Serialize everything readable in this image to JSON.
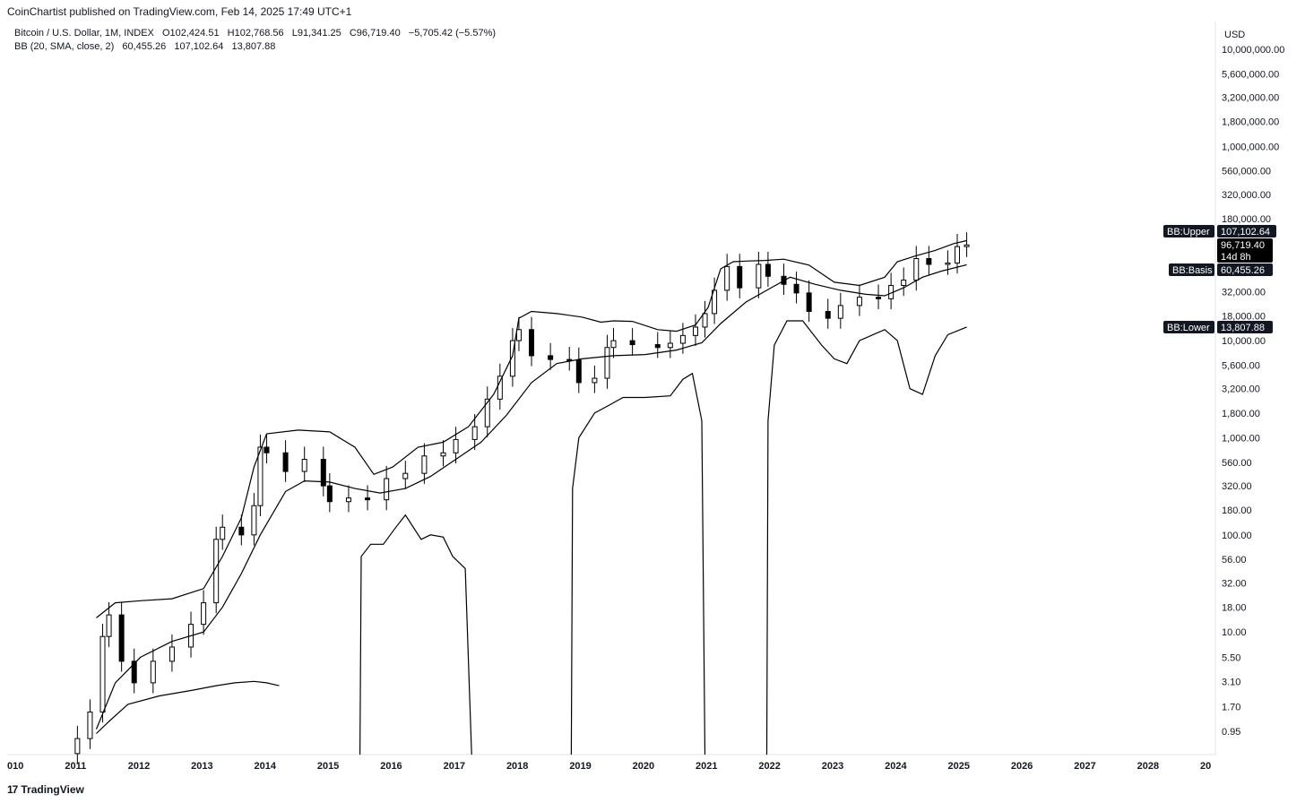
{
  "header": {
    "text": "CoinChartist published on TradingView.com, Feb 14, 2025 17:49 UTC+1"
  },
  "legend": {
    "symbol": "Bitcoin / U.S. Dollar, 1M, INDEX",
    "open": "O102,424.51",
    "high": "H102,768.56",
    "low": "L91,341.25",
    "close": "C96,719.40",
    "change": "−5,705.42 (−5.57%)",
    "indicator": "BB (20, SMA, close, 2)",
    "basis_value": "60,455.26",
    "upper_value": "107,102.64",
    "lower_value": "13,807.88"
  },
  "footer": {
    "logo_glyph": "17",
    "brand": "TradingView"
  },
  "price_tags": {
    "upper_label": "BB:Upper",
    "upper_value": "107,102.64",
    "price_value": "96,719.40",
    "countdown": "14d 8h",
    "basis_label": "BB:Basis",
    "basis_value": "60,455.26",
    "lower_label": "BB:Lower",
    "lower_value": "13,807.88"
  },
  "chart_data": {
    "type": "line",
    "scale": "log",
    "currency": "USD",
    "xlim": [
      2010,
      2029
    ],
    "ylim": [
      0.5,
      14000000
    ],
    "x_ticks": [
      "010",
      "2011",
      "2012",
      "2013",
      "2014",
      "2015",
      "2016",
      "2017",
      "2018",
      "2019",
      "2020",
      "2021",
      "2022",
      "2023",
      "2024",
      "2025",
      "2026",
      "2027",
      "2028",
      "20"
    ],
    "y_ticks": [
      {
        "value": 10000000,
        "label": "10,000,000.00"
      },
      {
        "value": 5600000,
        "label": "5,600,000.00"
      },
      {
        "value": 3200000,
        "label": "3,200,000.00"
      },
      {
        "value": 1800000,
        "label": "1,800,000.00"
      },
      {
        "value": 1000000,
        "label": "1,000,000.00"
      },
      {
        "value": 560000,
        "label": "560,000.00"
      },
      {
        "value": 320000,
        "label": "320,000.00"
      },
      {
        "value": 180000,
        "label": "180,000.00"
      },
      {
        "value": 32000,
        "label": "32,000.00"
      },
      {
        "value": 18000,
        "label": "18,000.00"
      },
      {
        "value": 10000,
        "label": "10,000.00"
      },
      {
        "value": 5600,
        "label": "5,600.00"
      },
      {
        "value": 3200,
        "label": "3,200.00"
      },
      {
        "value": 1800,
        "label": "1,800.00"
      },
      {
        "value": 1000,
        "label": "1,000.00"
      },
      {
        "value": 560,
        "label": "560.00"
      },
      {
        "value": 320,
        "label": "320.00"
      },
      {
        "value": 180,
        "label": "180.00"
      },
      {
        "value": 100,
        "label": "100.00"
      },
      {
        "value": 56,
        "label": "56.00"
      },
      {
        "value": 32,
        "label": "32.00"
      },
      {
        "value": 18,
        "label": "18.00"
      },
      {
        "value": 10,
        "label": "10.00"
      },
      {
        "value": 5.5,
        "label": "5.50"
      },
      {
        "value": 3.1,
        "label": "3.10"
      },
      {
        "value": 1.7,
        "label": "1.70"
      },
      {
        "value": 0.95,
        "label": "0.95"
      }
    ],
    "price_candles": {
      "note": "monthly close approximation",
      "x": [
        2011.0,
        2011.2,
        2011.4,
        2011.5,
        2011.7,
        2011.9,
        2012.2,
        2012.5,
        2012.8,
        2013.0,
        2013.2,
        2013.3,
        2013.6,
        2013.8,
        2013.9,
        2014.0,
        2014.3,
        2014.6,
        2014.9,
        2015.0,
        2015.3,
        2015.6,
        2015.9,
        2016.2,
        2016.5,
        2016.8,
        2017.0,
        2017.3,
        2017.5,
        2017.7,
        2017.9,
        2018.0,
        2018.2,
        2018.5,
        2018.8,
        2018.95,
        2019.2,
        2019.4,
        2019.5,
        2019.8,
        2020.2,
        2020.4,
        2020.6,
        2020.8,
        2020.95,
        2021.1,
        2021.3,
        2021.5,
        2021.8,
        2021.95,
        2022.2,
        2022.4,
        2022.6,
        2022.9,
        2023.1,
        2023.4,
        2023.7,
        2023.9,
        2024.1,
        2024.3,
        2024.5,
        2024.8,
        2024.95,
        2025.1
      ],
      "close": [
        0.8,
        1.5,
        9,
        15,
        5,
        3,
        5,
        7,
        12,
        20,
        90,
        120,
        100,
        200,
        800,
        700,
        450,
        600,
        320,
        220,
        240,
        230,
        380,
        430,
        650,
        700,
        960,
        1300,
        2500,
        4300,
        10000,
        13000,
        7000,
        6400,
        6300,
        3700,
        4100,
        8500,
        10000,
        9100,
        8500,
        9400,
        11300,
        13800,
        19000,
        33000,
        58000,
        35000,
        61000,
        46000,
        38000,
        31000,
        20000,
        17000,
        23000,
        28000,
        27000,
        37000,
        42000,
        70000,
        61000,
        63000,
        93000,
        96719
      ]
    },
    "series": [
      {
        "name": "BB:Upper",
        "x": [
          2011.3,
          2011.6,
          2012.0,
          2012.5,
          2013.0,
          2013.3,
          2013.6,
          2013.8,
          2014.0,
          2014.5,
          2015.0,
          2015.4,
          2015.7,
          2016.0,
          2016.4,
          2016.8,
          2017.2,
          2017.6,
          2017.9,
          2018.0,
          2018.2,
          2018.6,
          2019.0,
          2019.3,
          2019.5,
          2019.8,
          2020.2,
          2020.5,
          2020.8,
          2021.0,
          2021.2,
          2021.4,
          2021.6,
          2021.9,
          2022.2,
          2022.6,
          2023.0,
          2023.4,
          2023.8,
          2024.0,
          2024.3,
          2024.6,
          2024.9,
          2025.1
        ],
        "values": [
          14,
          20,
          21,
          22,
          28,
          60,
          150,
          500,
          1100,
          1200,
          1150,
          800,
          420,
          500,
          800,
          900,
          1300,
          2800,
          7000,
          17000,
          20000,
          19000,
          17500,
          15500,
          16000,
          15800,
          13000,
          12500,
          14500,
          22000,
          55000,
          65000,
          66000,
          67000,
          69000,
          60000,
          40000,
          37000,
          45000,
          65000,
          75000,
          85000,
          100000,
          107102
        ]
      },
      {
        "name": "BB:Basis",
        "x": [
          2011.3,
          2011.6,
          2012.0,
          2012.5,
          2013.0,
          2013.3,
          2013.6,
          2013.9,
          2014.3,
          2014.6,
          2015.0,
          2015.4,
          2015.8,
          2016.2,
          2016.6,
          2017.0,
          2017.4,
          2017.8,
          2018.2,
          2018.6,
          2019.0,
          2019.5,
          2020.0,
          2020.5,
          2020.9,
          2021.2,
          2021.6,
          2022.0,
          2022.3,
          2022.7,
          2023.1,
          2023.5,
          2023.8,
          2024.1,
          2024.4,
          2024.7,
          2025.1
        ],
        "values": [
          1.0,
          3.0,
          5.5,
          8,
          10,
          18,
          40,
          100,
          280,
          360,
          350,
          300,
          270,
          300,
          400,
          600,
          900,
          1700,
          3700,
          5800,
          6500,
          7000,
          7200,
          8000,
          9500,
          15000,
          25000,
          35000,
          45000,
          38000,
          33000,
          30000,
          29000,
          35000,
          45000,
          52000,
          60455
        ]
      },
      {
        "name": "BB:Lower",
        "segments": [
          {
            "x": [
              2011.3,
              2011.5,
              2011.8,
              2012.3,
              2012.8,
              2013.2,
              2013.5,
              2013.8,
              2014.0,
              2014.2
            ],
            "values": [
              0.9,
              1.2,
              1.8,
              2.2,
              2.5,
              2.8,
              3.0,
              3.1,
              3.0,
              2.8
            ]
          },
          {
            "x": [
              2015.48,
              2015.5,
              2015.65,
              2015.85,
              2016.05,
              2016.2,
              2016.45,
              2016.6,
              2016.8,
              2016.95,
              2017.15,
              2017.25
            ],
            "values": [
              0.5,
              60,
              80,
              80,
              120,
              160,
              90,
              100,
              95,
              60,
              45,
              0.5
            ]
          },
          {
            "x": [
              2018.83,
              2018.85,
              2018.95,
              2019.2,
              2019.45,
              2019.65,
              2020.0,
              2020.4,
              2020.6,
              2020.75,
              2020.9,
              2020.95
            ],
            "values": [
              0.5,
              300,
              1000,
              1800,
              2200,
              2600,
              2600,
              2700,
              4000,
              4600,
              1500,
              0.5
            ]
          },
          {
            "x": [
              2021.93,
              2021.95,
              2022.05,
              2022.25,
              2022.5,
              2022.8,
              2023.0,
              2023.2,
              2023.4,
              2023.8,
              2024.0,
              2024.2,
              2024.4,
              2024.6,
              2024.8,
              2025.1
            ],
            "values": [
              0.5,
              1500,
              9000,
              16000,
              16000,
              9000,
              6500,
              5800,
              10000,
              13000,
              10000,
              3200,
              2800,
              7000,
              11500,
              13800
            ]
          }
        ]
      }
    ]
  }
}
